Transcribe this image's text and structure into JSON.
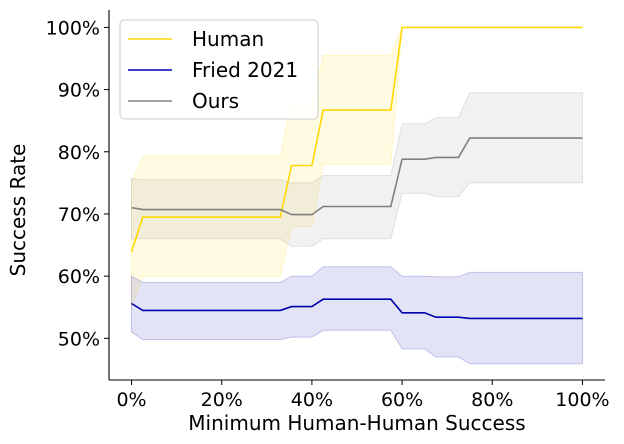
{
  "chart_data": {
    "type": "line",
    "title": "",
    "xlabel": "Minimum Human-Human Success",
    "ylabel": "Success Rate",
    "xlim": [
      -0.05,
      1.05
    ],
    "ylim": [
      0.433,
      1.028
    ],
    "x_ticks": [
      0,
      0.2,
      0.4,
      0.6,
      0.8,
      1.0
    ],
    "x_tick_labels": [
      "0%",
      "20%",
      "40%",
      "60%",
      "80%",
      "100%"
    ],
    "y_ticks": [
      0.5,
      0.6,
      0.7,
      0.8,
      0.9,
      1.0
    ],
    "y_tick_labels": [
      "50%",
      "60%",
      "70%",
      "80%",
      "90%",
      "100%"
    ],
    "legend_position": "top-left",
    "series": [
      {
        "name": "Human",
        "color": "#FFD700",
        "x": [
          0.0,
          0.025,
          0.33,
          0.355,
          0.4,
          0.425,
          0.575,
          0.6,
          1.0
        ],
        "values": [
          0.639,
          0.695,
          0.695,
          0.778,
          0.778,
          0.867,
          0.867,
          1.0,
          1.0
        ],
        "lower": [
          0.55,
          0.6,
          0.6,
          0.68,
          0.68,
          0.78,
          0.78,
          1.0,
          1.0
        ],
        "upper": [
          0.75,
          0.793,
          0.793,
          0.878,
          0.878,
          0.955,
          0.955,
          1.0,
          1.0
        ]
      },
      {
        "name": "Fried 2021",
        "color": "#0000B0",
        "x": [
          0.0,
          0.025,
          0.33,
          0.355,
          0.4,
          0.425,
          0.575,
          0.6,
          0.65,
          0.675,
          0.725,
          0.75,
          1.0
        ],
        "values": [
          0.556,
          0.545,
          0.545,
          0.551,
          0.551,
          0.563,
          0.563,
          0.541,
          0.541,
          0.534,
          0.534,
          0.532,
          0.532
        ],
        "lower": [
          0.51,
          0.498,
          0.498,
          0.502,
          0.502,
          0.513,
          0.513,
          0.483,
          0.483,
          0.47,
          0.47,
          0.459,
          0.459
        ],
        "upper": [
          0.6,
          0.59,
          0.59,
          0.6,
          0.6,
          0.615,
          0.615,
          0.6,
          0.6,
          0.599,
          0.599,
          0.606,
          0.606
        ]
      },
      {
        "name": "Ours",
        "color": "#808080",
        "x": [
          0.0,
          0.025,
          0.33,
          0.355,
          0.4,
          0.425,
          0.575,
          0.6,
          0.65,
          0.675,
          0.725,
          0.75,
          1.0
        ],
        "values": [
          0.71,
          0.707,
          0.707,
          0.699,
          0.699,
          0.712,
          0.712,
          0.788,
          0.788,
          0.791,
          0.791,
          0.822,
          0.822
        ],
        "lower": [
          0.66,
          0.66,
          0.66,
          0.648,
          0.648,
          0.66,
          0.66,
          0.733,
          0.733,
          0.728,
          0.728,
          0.75,
          0.75
        ],
        "upper": [
          0.757,
          0.755,
          0.755,
          0.75,
          0.75,
          0.762,
          0.762,
          0.845,
          0.845,
          0.855,
          0.855,
          0.895,
          0.895
        ]
      }
    ]
  }
}
